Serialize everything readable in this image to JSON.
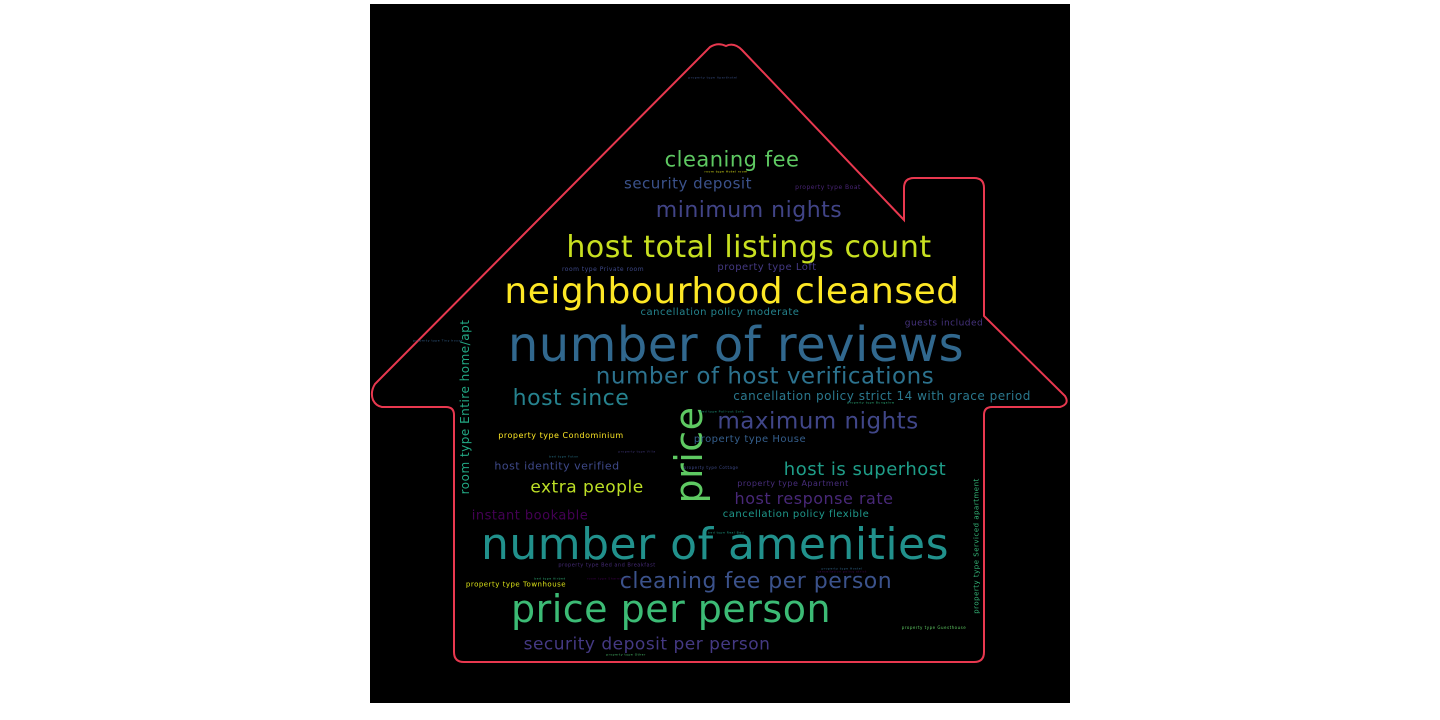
{
  "colors": {
    "background": "#000000",
    "outline": "#e8384f"
  },
  "words": [
    {
      "text": "number of reviews",
      "color": "#31688e"
    },
    {
      "text": "number of amenities",
      "color": "#21918c"
    },
    {
      "text": "neighbourhood cleansed",
      "color": "#fde725"
    },
    {
      "text": "price per person",
      "color": "#3cbb75"
    },
    {
      "text": "host total listings count",
      "color": "#c8e020"
    },
    {
      "text": "price",
      "color": "#5ec962"
    },
    {
      "text": "number of host verifications",
      "color": "#2c728e"
    },
    {
      "text": "cleaning fee per person",
      "color": "#3b528b"
    },
    {
      "text": "maximum nights",
      "color": "#404688"
    },
    {
      "text": "minimum nights",
      "color": "#414487"
    },
    {
      "text": "cleaning fee",
      "color": "#5ec962"
    },
    {
      "text": "host since",
      "color": "#26828e"
    },
    {
      "text": "host is superhost",
      "color": "#1f9e89"
    },
    {
      "text": "security deposit per person",
      "color": "#443983"
    },
    {
      "text": "extra people",
      "color": "#bddf26"
    },
    {
      "text": "host response rate",
      "color": "#482878"
    },
    {
      "text": "security deposit",
      "color": "#3b528b"
    },
    {
      "text": "cancellation policy strict 14 with grace period",
      "color": "#2a788e"
    },
    {
      "text": "room type Entire home/apt",
      "color": "#22a884"
    },
    {
      "text": "instant bookable",
      "color": "#440154"
    },
    {
      "text": "host identity verified",
      "color": "#3e4989"
    },
    {
      "text": "cancellation policy moderate",
      "color": "#25848e"
    },
    {
      "text": "cancellation policy flexible",
      "color": "#1f988b"
    },
    {
      "text": "property type House",
      "color": "#355f8d"
    },
    {
      "text": "property type Loft",
      "color": "#443983"
    },
    {
      "text": "guests included",
      "color": "#46337e"
    },
    {
      "text": "property type Condominium",
      "color": "#fde725"
    },
    {
      "text": "property type Apartment",
      "color": "#472d7b"
    },
    {
      "text": "property type Serviced apartment",
      "color": "#35b779"
    },
    {
      "text": "property type Townhouse",
      "color": "#dde318"
    },
    {
      "text": "room type Private room",
      "color": "#3e4989"
    },
    {
      "text": "property type Bed and Breakfast",
      "color": "#472c7a"
    },
    {
      "text": "property type Boat",
      "color": "#482475"
    },
    {
      "text": "property type Cottage",
      "color": "#3e4a89"
    },
    {
      "text": "property type Guesthouse",
      "color": "#5ec962"
    },
    {
      "text": "room type Hotel room",
      "color": "#dde318"
    },
    {
      "text": "property type Bungalow",
      "color": "#2db27d"
    },
    {
      "text": "property type Hostel",
      "color": "#31688e"
    },
    {
      "text": "bed type Futon",
      "color": "#2a788e"
    },
    {
      "text": "property type Villa",
      "color": "#443a83"
    },
    {
      "text": "bed type Pull-out Sofa",
      "color": "#20a386"
    },
    {
      "text": "property type Other",
      "color": "#4ac16d"
    },
    {
      "text": "bed type Real Bed",
      "color": "#1fa088"
    },
    {
      "text": "property type Aparthotel",
      "color": "#3b528b"
    },
    {
      "text": "room type Shared room",
      "color": "#440154"
    },
    {
      "text": "cancellation policy strict",
      "color": "#46085c"
    },
    {
      "text": "bed type Airbed",
      "color": "#31b57b"
    },
    {
      "text": "property type Tiny house",
      "color": "#34608d"
    }
  ]
}
